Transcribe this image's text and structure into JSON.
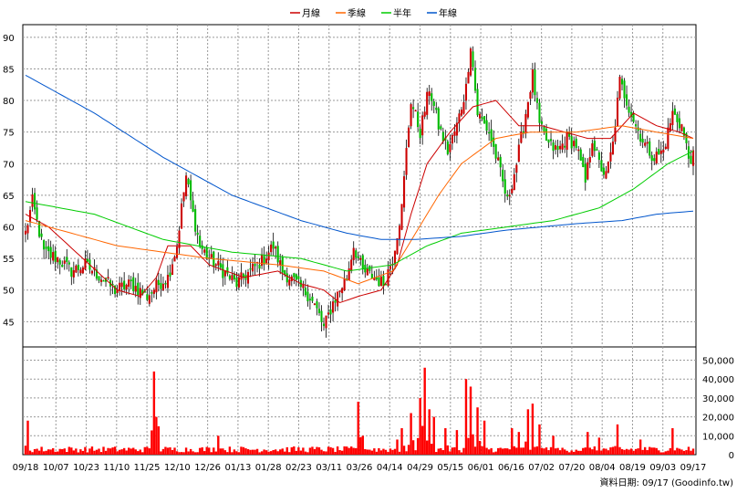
{
  "chart_data": {
    "type": "candlestick",
    "legend": {
      "placement": "top-center",
      "items": [
        {
          "name": "月線",
          "color": "#cc0000"
        },
        {
          "name": "季線",
          "color": "#ff6600"
        },
        {
          "name": "半年",
          "color": "#00cc00"
        },
        {
          "name": "年線",
          "color": "#0055cc"
        }
      ]
    },
    "price_axis": {
      "ylim": [
        41,
        92
      ],
      "ticks": [
        45,
        50,
        55,
        60,
        65,
        70,
        75,
        80,
        85,
        90
      ],
      "grid": true
    },
    "volume_axis": {
      "ylim": [
        0,
        57000
      ],
      "ticks": [
        0,
        10000,
        20000,
        30000,
        40000,
        50000
      ],
      "tick_labels": [
        "0",
        "10,000",
        "20,000",
        "30,000",
        "40,000",
        "50,000"
      ],
      "grid": true
    },
    "x_ticks": [
      "09/18",
      "10/07",
      "10/23",
      "11/10",
      "11/25",
      "12/10",
      "12/26",
      "01/13",
      "01/28",
      "02/23",
      "03/11",
      "03/26",
      "04/14",
      "04/29",
      "05/15",
      "06/01",
      "06/16",
      "07/02",
      "07/20",
      "08/04",
      "08/19",
      "09/03",
      "09/17"
    ],
    "colors": {
      "up": "#cc0000",
      "down": "#00bb00",
      "volume": "#ff0000",
      "grid": "#999999"
    },
    "price_anchors": [
      {
        "i": 0,
        "c": 59
      },
      {
        "i": 3,
        "c": 64
      },
      {
        "i": 8,
        "c": 56
      },
      {
        "i": 14,
        "c": 55
      },
      {
        "i": 20,
        "c": 53
      },
      {
        "i": 26,
        "c": 54
      },
      {
        "i": 33,
        "c": 52
      },
      {
        "i": 39,
        "c": 50
      },
      {
        "i": 46,
        "c": 51
      },
      {
        "i": 53,
        "c": 49
      },
      {
        "i": 58,
        "c": 51
      },
      {
        "i": 62,
        "c": 52
      },
      {
        "i": 66,
        "c": 57
      },
      {
        "i": 68,
        "c": 63
      },
      {
        "i": 70,
        "c": 68
      },
      {
        "i": 73,
        "c": 62
      },
      {
        "i": 76,
        "c": 57
      },
      {
        "i": 80,
        "c": 55
      },
      {
        "i": 86,
        "c": 53
      },
      {
        "i": 92,
        "c": 51
      },
      {
        "i": 98,
        "c": 53
      },
      {
        "i": 104,
        "c": 55
      },
      {
        "i": 108,
        "c": 57
      },
      {
        "i": 112,
        "c": 53
      },
      {
        "i": 118,
        "c": 51
      },
      {
        "i": 124,
        "c": 49
      },
      {
        "i": 128,
        "c": 46
      },
      {
        "i": 130,
        "c": 44
      },
      {
        "i": 134,
        "c": 48
      },
      {
        "i": 140,
        "c": 52
      },
      {
        "i": 143,
        "c": 57
      },
      {
        "i": 147,
        "c": 53
      },
      {
        "i": 152,
        "c": 52
      },
      {
        "i": 156,
        "c": 51
      },
      {
        "i": 160,
        "c": 55
      },
      {
        "i": 164,
        "c": 63
      },
      {
        "i": 166,
        "c": 72
      },
      {
        "i": 168,
        "c": 80
      },
      {
        "i": 172,
        "c": 75
      },
      {
        "i": 176,
        "c": 82
      },
      {
        "i": 180,
        "c": 76
      },
      {
        "i": 184,
        "c": 72
      },
      {
        "i": 188,
        "c": 76
      },
      {
        "i": 192,
        "c": 82
      },
      {
        "i": 194,
        "c": 89
      },
      {
        "i": 197,
        "c": 78
      },
      {
        "i": 202,
        "c": 75
      },
      {
        "i": 206,
        "c": 70
      },
      {
        "i": 210,
        "c": 64
      },
      {
        "i": 214,
        "c": 70
      },
      {
        "i": 218,
        "c": 78
      },
      {
        "i": 221,
        "c": 84
      },
      {
        "i": 224,
        "c": 76
      },
      {
        "i": 228,
        "c": 73
      },
      {
        "i": 232,
        "c": 72
      },
      {
        "i": 236,
        "c": 74
      },
      {
        "i": 240,
        "c": 73
      },
      {
        "i": 244,
        "c": 67
      },
      {
        "i": 247,
        "c": 74
      },
      {
        "i": 250,
        "c": 70
      },
      {
        "i": 253,
        "c": 68
      },
      {
        "i": 256,
        "c": 73
      },
      {
        "i": 259,
        "c": 83
      },
      {
        "i": 262,
        "c": 80
      },
      {
        "i": 266,
        "c": 76
      },
      {
        "i": 270,
        "c": 73
      },
      {
        "i": 274,
        "c": 71
      },
      {
        "i": 278,
        "c": 72
      },
      {
        "i": 282,
        "c": 78
      },
      {
        "i": 286,
        "c": 76
      },
      {
        "i": 289,
        "c": 71
      },
      {
        "i": 291,
        "c": 71
      }
    ],
    "volume_spikes": [
      {
        "i": 1,
        "v": 18000
      },
      {
        "i": 56,
        "v": 44000
      },
      {
        "i": 57,
        "v": 20000
      },
      {
        "i": 58,
        "v": 15000
      },
      {
        "i": 84,
        "v": 10000
      },
      {
        "i": 145,
        "v": 28000
      },
      {
        "i": 147,
        "v": 10000
      },
      {
        "i": 162,
        "v": 8000
      },
      {
        "i": 164,
        "v": 14000
      },
      {
        "i": 168,
        "v": 22000
      },
      {
        "i": 172,
        "v": 30000
      },
      {
        "i": 174,
        "v": 46000
      },
      {
        "i": 176,
        "v": 24000
      },
      {
        "i": 178,
        "v": 20000
      },
      {
        "i": 183,
        "v": 14000
      },
      {
        "i": 188,
        "v": 13000
      },
      {
        "i": 192,
        "v": 40000
      },
      {
        "i": 194,
        "v": 36000
      },
      {
        "i": 197,
        "v": 25000
      },
      {
        "i": 200,
        "v": 18000
      },
      {
        "i": 212,
        "v": 14000
      },
      {
        "i": 215,
        "v": 12000
      },
      {
        "i": 219,
        "v": 24000
      },
      {
        "i": 221,
        "v": 27000
      },
      {
        "i": 224,
        "v": 16000
      },
      {
        "i": 230,
        "v": 10000
      },
      {
        "i": 245,
        "v": 12000
      },
      {
        "i": 250,
        "v": 9000
      },
      {
        "i": 258,
        "v": 16000
      },
      {
        "i": 268,
        "v": 8000
      },
      {
        "i": 282,
        "v": 14000
      }
    ],
    "ma_lines": [
      {
        "name": "月線",
        "color": "#cc0000",
        "values": [
          [
            0,
            62
          ],
          [
            10,
            60
          ],
          [
            25,
            55
          ],
          [
            40,
            50
          ],
          [
            50,
            49
          ],
          [
            57,
            52
          ],
          [
            62,
            57
          ],
          [
            72,
            57
          ],
          [
            80,
            54
          ],
          [
            95,
            52
          ],
          [
            110,
            53
          ],
          [
            120,
            51
          ],
          [
            130,
            50
          ],
          [
            137,
            48
          ],
          [
            145,
            49
          ],
          [
            155,
            50
          ],
          [
            162,
            54
          ],
          [
            168,
            62
          ],
          [
            175,
            70
          ],
          [
            185,
            75
          ],
          [
            195,
            79
          ],
          [
            205,
            80
          ],
          [
            215,
            76
          ],
          [
            225,
            76
          ],
          [
            235,
            75
          ],
          [
            245,
            74
          ],
          [
            255,
            74
          ],
          [
            265,
            78
          ],
          [
            275,
            76
          ],
          [
            285,
            75
          ],
          [
            291,
            74
          ]
        ]
      },
      {
        "name": "季線",
        "color": "#ff6600",
        "values": [
          [
            0,
            61
          ],
          [
            20,
            59
          ],
          [
            40,
            57
          ],
          [
            60,
            56
          ],
          [
            80,
            55
          ],
          [
            110,
            54
          ],
          [
            130,
            53
          ],
          [
            145,
            51
          ],
          [
            160,
            53
          ],
          [
            170,
            59
          ],
          [
            180,
            65
          ],
          [
            190,
            70
          ],
          [
            205,
            74
          ],
          [
            220,
            75
          ],
          [
            240,
            75
          ],
          [
            260,
            76
          ],
          [
            275,
            75
          ],
          [
            291,
            74
          ]
        ]
      },
      {
        "name": "半年",
        "color": "#00cc00",
        "values": [
          [
            0,
            64
          ],
          [
            30,
            62
          ],
          [
            60,
            58
          ],
          [
            90,
            56
          ],
          [
            120,
            55
          ],
          [
            140,
            53
          ],
          [
            160,
            54
          ],
          [
            175,
            57
          ],
          [
            190,
            59
          ],
          [
            210,
            60
          ],
          [
            230,
            61
          ],
          [
            250,
            63
          ],
          [
            265,
            66
          ],
          [
            280,
            70
          ],
          [
            291,
            72
          ]
        ]
      },
      {
        "name": "年線",
        "color": "#0055cc",
        "values": [
          [
            0,
            84
          ],
          [
            30,
            78
          ],
          [
            60,
            71
          ],
          [
            90,
            65
          ],
          [
            120,
            61
          ],
          [
            140,
            59
          ],
          [
            155,
            58
          ],
          [
            170,
            58
          ],
          [
            190,
            58.5
          ],
          [
            210,
            59.5
          ],
          [
            240,
            60.5
          ],
          [
            260,
            61
          ],
          [
            275,
            62
          ],
          [
            291,
            62.5
          ]
        ]
      }
    ]
  },
  "footer": {
    "source": "資料日期: 09/17  (Goodinfo.tw)"
  }
}
